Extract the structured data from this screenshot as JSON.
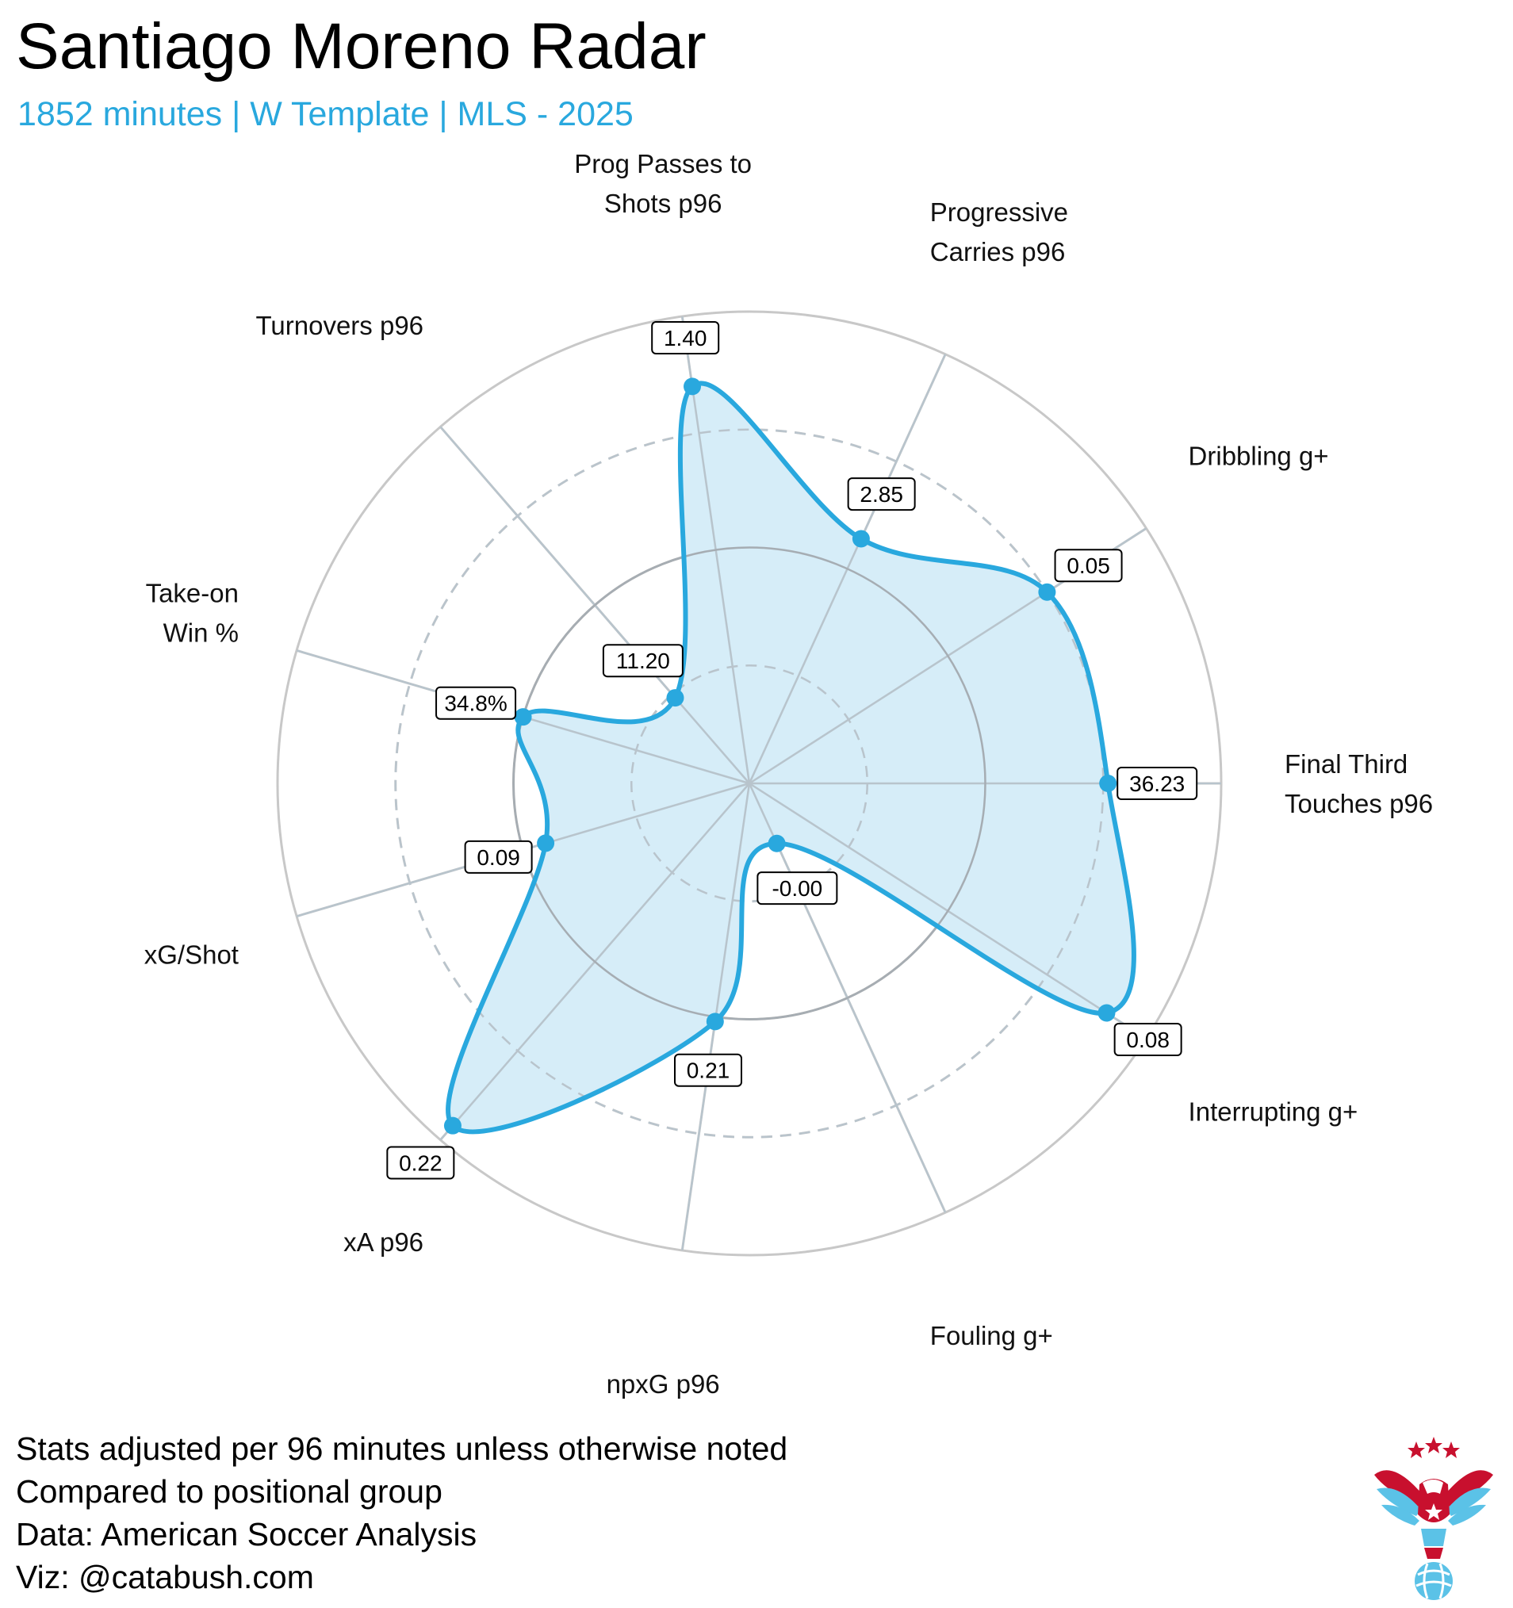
{
  "title": "Santiago Moreno Radar",
  "subtitle": "1852 minutes | W Template | MLS - 2025",
  "footnotes": [
    "Stats adjusted per 96 minutes unless otherwise noted",
    "Compared to positional group",
    "Data: American Soccer Analysis",
    "Viz: @catabush.com"
  ],
  "colors": {
    "accent": "#29a8de",
    "fill": "#d4ecf8",
    "grid": "#c8c8c8",
    "grid_dark": "#a8a8a8"
  },
  "chart_data": {
    "type": "radar",
    "title": "Santiago Moreno Radar",
    "scale": "percentile",
    "rlim": [
      0,
      100
    ],
    "grid_rings": [
      25,
      50,
      75,
      100
    ],
    "dashed_rings": [
      25,
      75
    ],
    "axes": [
      {
        "label": [
          "Final Third",
          "Touches p96"
        ],
        "value_label": "36.23",
        "percentile": 76
      },
      {
        "label": [
          "Dribbling g+"
        ],
        "value_label": "0.05",
        "percentile": 75
      },
      {
        "label": [
          "Progressive",
          "Carries p96"
        ],
        "value_label": "2.85",
        "percentile": 57
      },
      {
        "label": [
          "Prog Passes to",
          "Shots p96"
        ],
        "value_label": "1.40",
        "percentile": 85
      },
      {
        "label": [
          "Turnovers p96"
        ],
        "value_label": "11.20",
        "percentile": 24
      },
      {
        "label": [
          "Take-on",
          "Win %"
        ],
        "value_label": "34.8%",
        "percentile": 50
      },
      {
        "label": [
          "xG/Shot"
        ],
        "value_label": "0.09",
        "percentile": 45
      },
      {
        "label": [
          "xA p96"
        ],
        "value_label": "0.22",
        "percentile": 96
      },
      {
        "label": [
          "npxG p96"
        ],
        "value_label": "0.21",
        "percentile": 51
      },
      {
        "label": [
          "Fouling g+"
        ],
        "value_label": "-0.00",
        "percentile": 14
      },
      {
        "label": [
          "Interrupting g+"
        ],
        "value_label": "0.08",
        "percentile": 90
      }
    ]
  },
  "logo": {
    "name": "catabush eagle logo"
  }
}
